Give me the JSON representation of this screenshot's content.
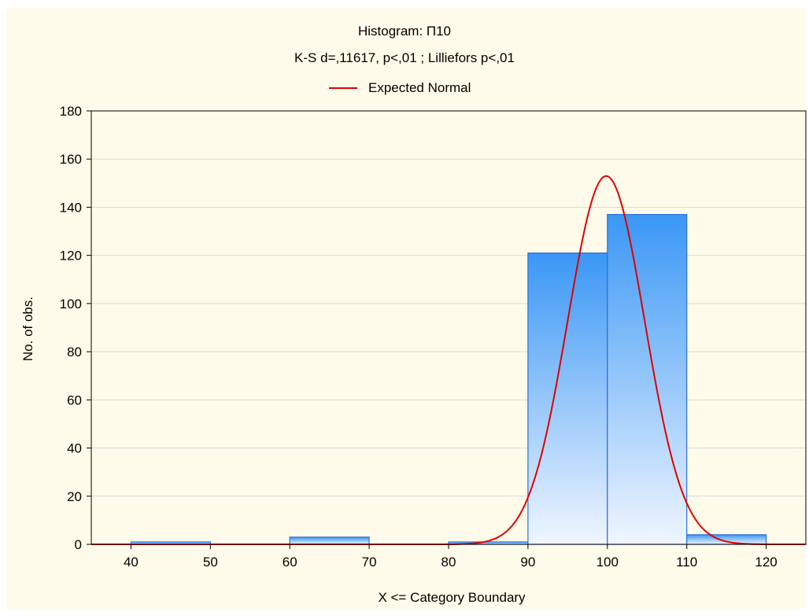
{
  "chart_data": {
    "type": "bar",
    "title": "Histogram: П10",
    "subtitle": "K-S d=,11617, p<,01 ; Lilliefors p<,01",
    "xlabel": "X <= Category Boundary",
    "ylabel": "No. of obs.",
    "xlim": [
      35,
      125
    ],
    "ylim": [
      0,
      180
    ],
    "x_ticks": [
      40,
      50,
      60,
      70,
      80,
      90,
      100,
      110,
      120
    ],
    "y_ticks": [
      0,
      20,
      40,
      60,
      80,
      100,
      120,
      140,
      160,
      180
    ],
    "grid": true,
    "legend_position": "top",
    "bins": [
      {
        "x0": 40,
        "x1": 50,
        "value": 1
      },
      {
        "x0": 50,
        "x1": 60,
        "value": 0
      },
      {
        "x0": 60,
        "x1": 70,
        "value": 3
      },
      {
        "x0": 70,
        "x1": 80,
        "value": 0
      },
      {
        "x0": 80,
        "x1": 90,
        "value": 1
      },
      {
        "x0": 90,
        "x1": 100,
        "value": 121
      },
      {
        "x0": 100,
        "x1": 110,
        "value": 137
      },
      {
        "x0": 110,
        "x1": 120,
        "value": 4
      }
    ],
    "series": [
      {
        "name": "Expected Normal",
        "type": "line",
        "color": "#e00000",
        "mean": 99.85,
        "peak": 153,
        "sd": 4.85
      }
    ],
    "bar_color_top": "#3a97f5",
    "bar_color_bottom": "#f0f6ff"
  }
}
